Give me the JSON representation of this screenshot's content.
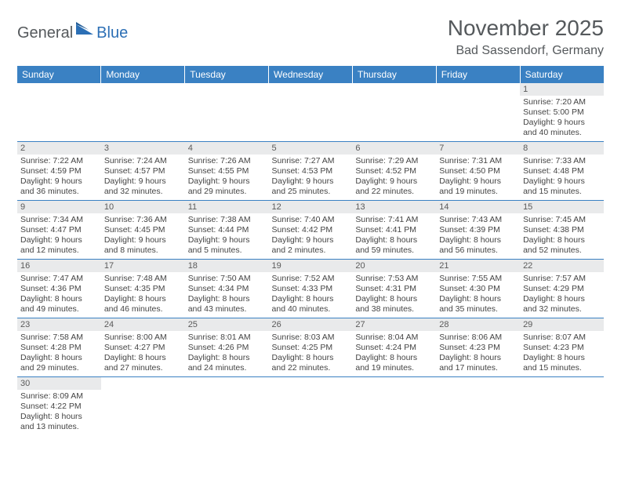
{
  "brand": {
    "part1": "General",
    "part2": "Blue"
  },
  "title": "November 2025",
  "location": "Bad Sassendorf, Germany",
  "colors": {
    "header_bg": "#3a81c3",
    "header_text": "#ffffff",
    "daynum_bg": "#e9eaeb",
    "rule": "#3a81c3",
    "title_text": "#55595c",
    "logo_blue": "#2c6fb5"
  },
  "day_headers": [
    "Sunday",
    "Monday",
    "Tuesday",
    "Wednesday",
    "Thursday",
    "Friday",
    "Saturday"
  ],
  "weeks": [
    [
      null,
      null,
      null,
      null,
      null,
      null,
      {
        "n": "1",
        "sr": "Sunrise: 7:20 AM",
        "ss": "Sunset: 5:00 PM",
        "d1": "Daylight: 9 hours",
        "d2": "and 40 minutes."
      }
    ],
    [
      {
        "n": "2",
        "sr": "Sunrise: 7:22 AM",
        "ss": "Sunset: 4:59 PM",
        "d1": "Daylight: 9 hours",
        "d2": "and 36 minutes."
      },
      {
        "n": "3",
        "sr": "Sunrise: 7:24 AM",
        "ss": "Sunset: 4:57 PM",
        "d1": "Daylight: 9 hours",
        "d2": "and 32 minutes."
      },
      {
        "n": "4",
        "sr": "Sunrise: 7:26 AM",
        "ss": "Sunset: 4:55 PM",
        "d1": "Daylight: 9 hours",
        "d2": "and 29 minutes."
      },
      {
        "n": "5",
        "sr": "Sunrise: 7:27 AM",
        "ss": "Sunset: 4:53 PM",
        "d1": "Daylight: 9 hours",
        "d2": "and 25 minutes."
      },
      {
        "n": "6",
        "sr": "Sunrise: 7:29 AM",
        "ss": "Sunset: 4:52 PM",
        "d1": "Daylight: 9 hours",
        "d2": "and 22 minutes."
      },
      {
        "n": "7",
        "sr": "Sunrise: 7:31 AM",
        "ss": "Sunset: 4:50 PM",
        "d1": "Daylight: 9 hours",
        "d2": "and 19 minutes."
      },
      {
        "n": "8",
        "sr": "Sunrise: 7:33 AM",
        "ss": "Sunset: 4:48 PM",
        "d1": "Daylight: 9 hours",
        "d2": "and 15 minutes."
      }
    ],
    [
      {
        "n": "9",
        "sr": "Sunrise: 7:34 AM",
        "ss": "Sunset: 4:47 PM",
        "d1": "Daylight: 9 hours",
        "d2": "and 12 minutes."
      },
      {
        "n": "10",
        "sr": "Sunrise: 7:36 AM",
        "ss": "Sunset: 4:45 PM",
        "d1": "Daylight: 9 hours",
        "d2": "and 8 minutes."
      },
      {
        "n": "11",
        "sr": "Sunrise: 7:38 AM",
        "ss": "Sunset: 4:44 PM",
        "d1": "Daylight: 9 hours",
        "d2": "and 5 minutes."
      },
      {
        "n": "12",
        "sr": "Sunrise: 7:40 AM",
        "ss": "Sunset: 4:42 PM",
        "d1": "Daylight: 9 hours",
        "d2": "and 2 minutes."
      },
      {
        "n": "13",
        "sr": "Sunrise: 7:41 AM",
        "ss": "Sunset: 4:41 PM",
        "d1": "Daylight: 8 hours",
        "d2": "and 59 minutes."
      },
      {
        "n": "14",
        "sr": "Sunrise: 7:43 AM",
        "ss": "Sunset: 4:39 PM",
        "d1": "Daylight: 8 hours",
        "d2": "and 56 minutes."
      },
      {
        "n": "15",
        "sr": "Sunrise: 7:45 AM",
        "ss": "Sunset: 4:38 PM",
        "d1": "Daylight: 8 hours",
        "d2": "and 52 minutes."
      }
    ],
    [
      {
        "n": "16",
        "sr": "Sunrise: 7:47 AM",
        "ss": "Sunset: 4:36 PM",
        "d1": "Daylight: 8 hours",
        "d2": "and 49 minutes."
      },
      {
        "n": "17",
        "sr": "Sunrise: 7:48 AM",
        "ss": "Sunset: 4:35 PM",
        "d1": "Daylight: 8 hours",
        "d2": "and 46 minutes."
      },
      {
        "n": "18",
        "sr": "Sunrise: 7:50 AM",
        "ss": "Sunset: 4:34 PM",
        "d1": "Daylight: 8 hours",
        "d2": "and 43 minutes."
      },
      {
        "n": "19",
        "sr": "Sunrise: 7:52 AM",
        "ss": "Sunset: 4:33 PM",
        "d1": "Daylight: 8 hours",
        "d2": "and 40 minutes."
      },
      {
        "n": "20",
        "sr": "Sunrise: 7:53 AM",
        "ss": "Sunset: 4:31 PM",
        "d1": "Daylight: 8 hours",
        "d2": "and 38 minutes."
      },
      {
        "n": "21",
        "sr": "Sunrise: 7:55 AM",
        "ss": "Sunset: 4:30 PM",
        "d1": "Daylight: 8 hours",
        "d2": "and 35 minutes."
      },
      {
        "n": "22",
        "sr": "Sunrise: 7:57 AM",
        "ss": "Sunset: 4:29 PM",
        "d1": "Daylight: 8 hours",
        "d2": "and 32 minutes."
      }
    ],
    [
      {
        "n": "23",
        "sr": "Sunrise: 7:58 AM",
        "ss": "Sunset: 4:28 PM",
        "d1": "Daylight: 8 hours",
        "d2": "and 29 minutes."
      },
      {
        "n": "24",
        "sr": "Sunrise: 8:00 AM",
        "ss": "Sunset: 4:27 PM",
        "d1": "Daylight: 8 hours",
        "d2": "and 27 minutes."
      },
      {
        "n": "25",
        "sr": "Sunrise: 8:01 AM",
        "ss": "Sunset: 4:26 PM",
        "d1": "Daylight: 8 hours",
        "d2": "and 24 minutes."
      },
      {
        "n": "26",
        "sr": "Sunrise: 8:03 AM",
        "ss": "Sunset: 4:25 PM",
        "d1": "Daylight: 8 hours",
        "d2": "and 22 minutes."
      },
      {
        "n": "27",
        "sr": "Sunrise: 8:04 AM",
        "ss": "Sunset: 4:24 PM",
        "d1": "Daylight: 8 hours",
        "d2": "and 19 minutes."
      },
      {
        "n": "28",
        "sr": "Sunrise: 8:06 AM",
        "ss": "Sunset: 4:23 PM",
        "d1": "Daylight: 8 hours",
        "d2": "and 17 minutes."
      },
      {
        "n": "29",
        "sr": "Sunrise: 8:07 AM",
        "ss": "Sunset: 4:23 PM",
        "d1": "Daylight: 8 hours",
        "d2": "and 15 minutes."
      }
    ],
    [
      {
        "n": "30",
        "sr": "Sunrise: 8:09 AM",
        "ss": "Sunset: 4:22 PM",
        "d1": "Daylight: 8 hours",
        "d2": "and 13 minutes."
      },
      null,
      null,
      null,
      null,
      null,
      null
    ]
  ]
}
